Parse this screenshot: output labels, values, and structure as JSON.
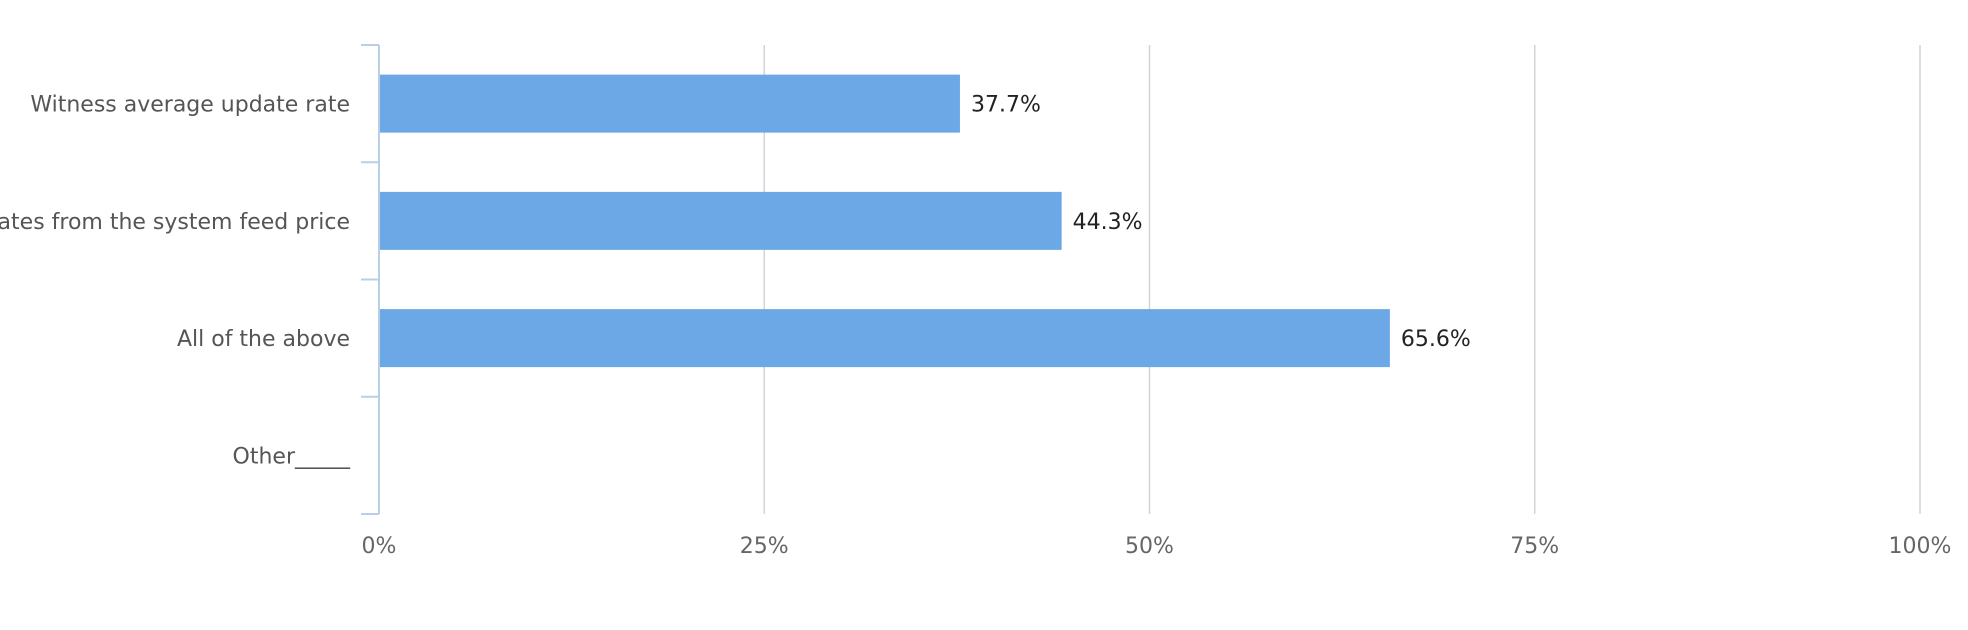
{
  "chart_data": {
    "type": "bar",
    "orientation": "horizontal",
    "categories": [
      "Witness average update rate",
      "Updates from the system feed price",
      "All of the above",
      "Other_____"
    ],
    "values": [
      37.7,
      44.3,
      65.6,
      null
    ],
    "data_labels": [
      "37.7%",
      "44.3%",
      "65.6%",
      ""
    ],
    "x_ticks": [
      "0%",
      "25%",
      "50%",
      "75%",
      "100%"
    ],
    "xlim": [
      0,
      100
    ],
    "grid": true,
    "legend": "none",
    "title": "",
    "xlabel": "",
    "ylabel": "",
    "colors": {
      "bar": "#6ca8e6",
      "grid": "#d0d4d9",
      "axis": "#b9cfe8",
      "category_text": "#555555",
      "tick_text": "#666666",
      "value_text": "#222222"
    }
  }
}
